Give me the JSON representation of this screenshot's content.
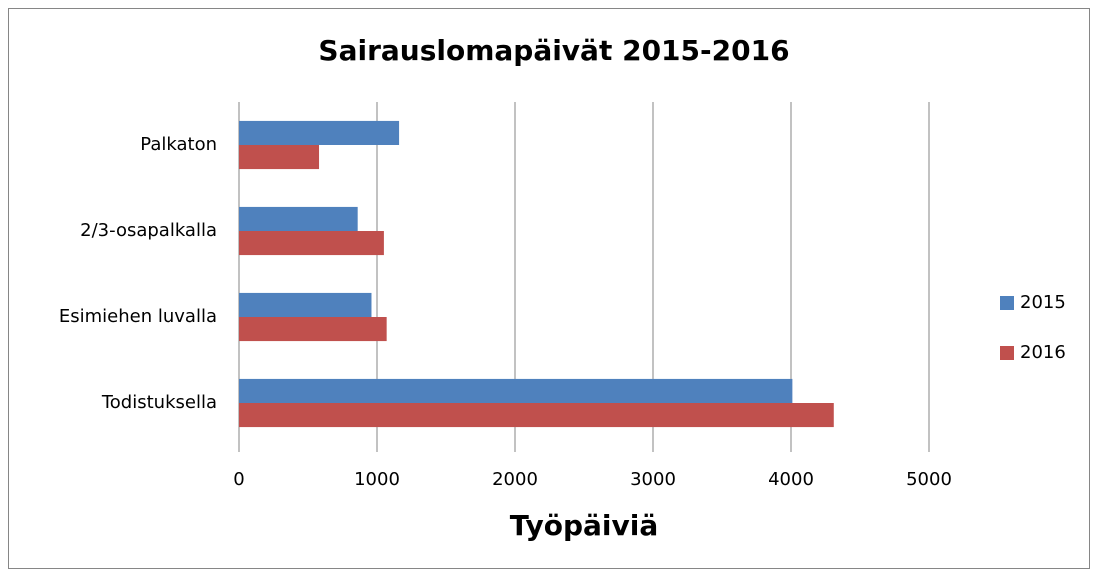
{
  "chart_data": {
    "type": "bar",
    "orientation": "horizontal",
    "title": "Sairauslomapäivät 2015-2016",
    "x_label": "Työpäiviä",
    "categories": [
      "Palkaton",
      "2/3-osapalkalla",
      "Esimiehen luvalla",
      "Todistuksella"
    ],
    "series": [
      {
        "name": "2015",
        "color": "#4f81bd",
        "values": [
          1160,
          860,
          960,
          4010
        ]
      },
      {
        "name": "2016",
        "color": "#c0504d",
        "values": [
          580,
          1050,
          1070,
          4310
        ]
      }
    ],
    "xlim": [
      0,
      5000
    ],
    "xticks": [
      0,
      1000,
      2000,
      3000,
      4000,
      5000
    ],
    "grid": true,
    "legend": "right"
  }
}
